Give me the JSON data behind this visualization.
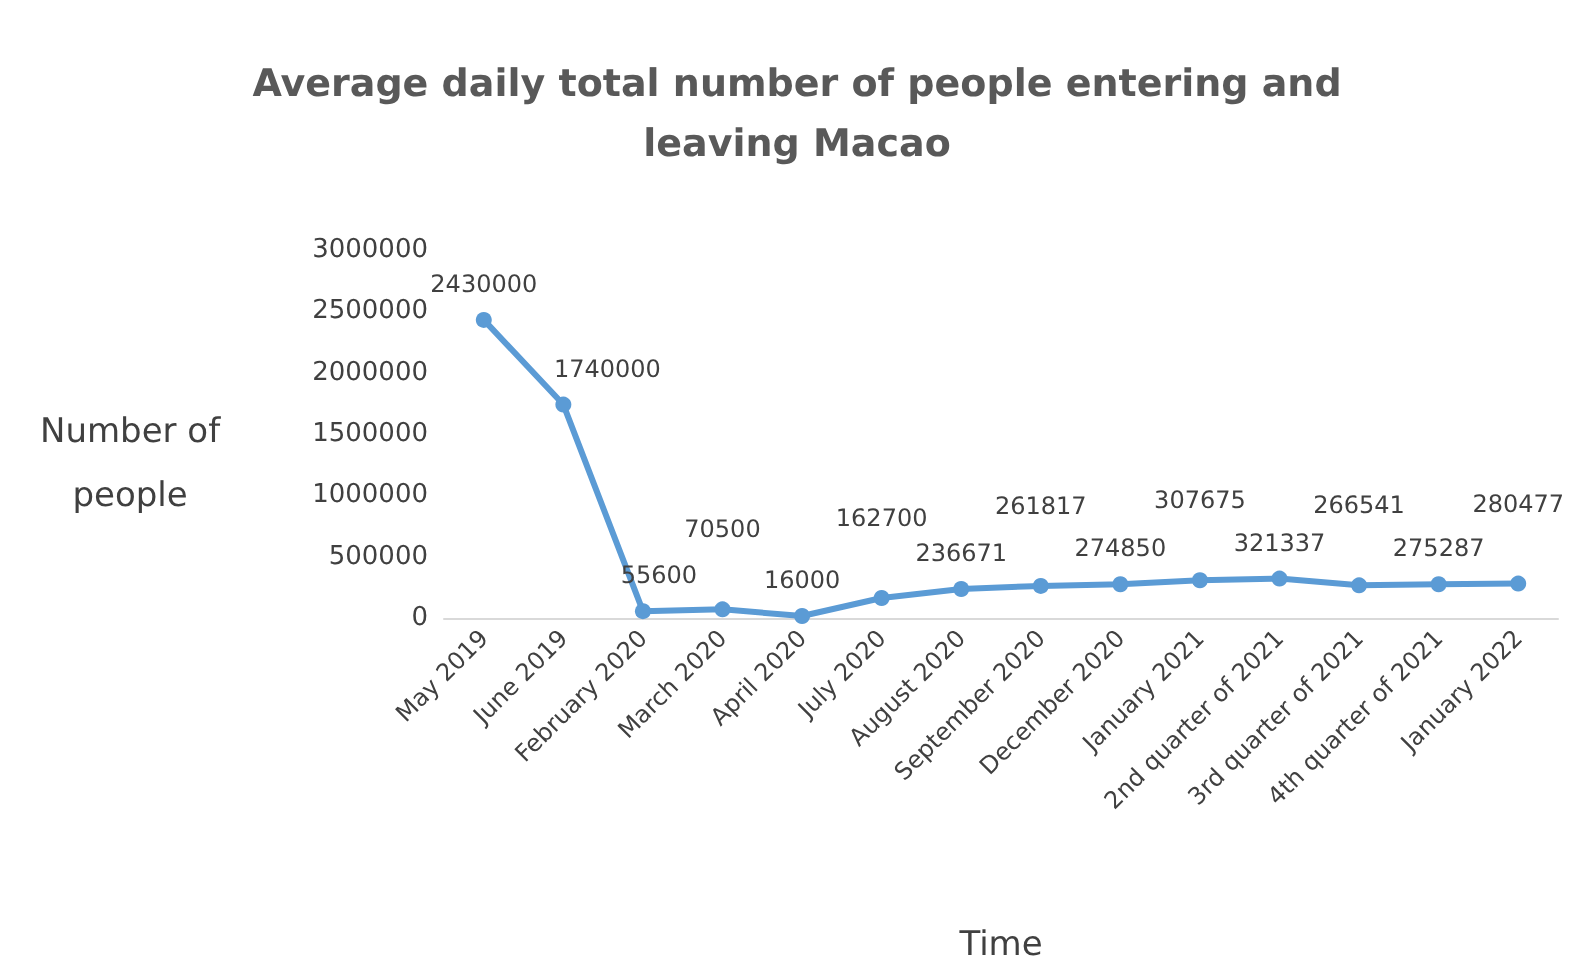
{
  "chart_data": {
    "type": "line",
    "title": "Average daily total number of people entering and leaving Macao",
    "xlabel": "Time",
    "ylabel": "Number of people",
    "categories": [
      "May 2019",
      "June 2019",
      "February 2020",
      "March 2020",
      "April 2020",
      "July 2020",
      "August 2020",
      "September 2020",
      "December 2020",
      "January 2021",
      "2nd quarter of 2021",
      "3rd quarter of 2021",
      "4th quarter of 2021",
      "January 2022"
    ],
    "series": [
      {
        "color": "#5b9bd5",
        "values": [
          2430000,
          1740000,
          55600,
          70500,
          16000,
          162700,
          236671,
          261817,
          274850,
          307675,
          321337,
          266541,
          275287,
          280477
        ]
      }
    ],
    "ylim": [
      0,
      3000000
    ],
    "yticks": [
      0,
      500000,
      1000000,
      1500000,
      2000000,
      2500000,
      3000000
    ],
    "data_labels": true,
    "grid": false,
    "marker": "circle",
    "line_style": "solid"
  }
}
